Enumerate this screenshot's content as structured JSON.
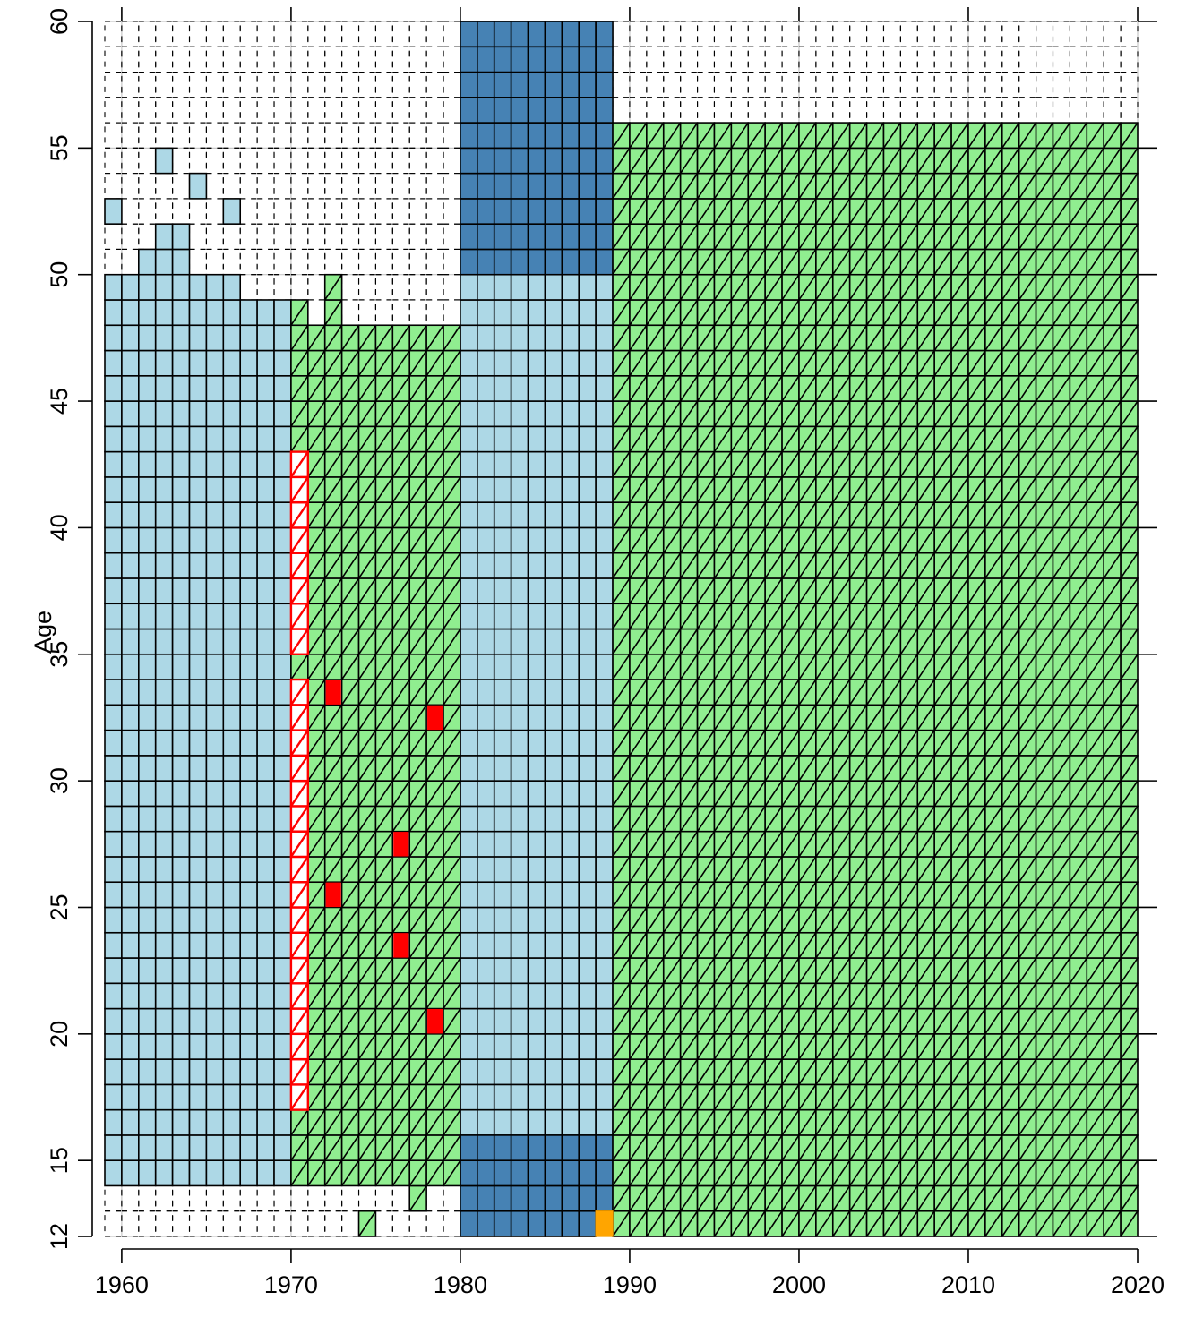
{
  "chart_data": {
    "type": "heatmap",
    "title": "",
    "xlabel": "",
    "ylabel": "Age",
    "xlim": [
      1959,
      2020
    ],
    "ylim": [
      12,
      60
    ],
    "x_ticks": [
      1960,
      1970,
      1980,
      1990,
      2000,
      2010,
      2020
    ],
    "y_ticks": [
      12,
      15,
      20,
      25,
      30,
      35,
      40,
      45,
      50,
      55,
      60
    ],
    "grid": true,
    "colors": {
      "light_blue": "#add8e6",
      "steel_blue": "#4682b4",
      "light_green": "#90ee90",
      "red": "#ff0000",
      "orange": "#ffa500",
      "grid": "#c8c8c8"
    },
    "cell_types": {
      "dashed": "empty cell with dashed outline",
      "light_blue": "solid light blue cell",
      "steel_blue": "solid steel blue cell",
      "green_hatched": "light green cell with diagonal hatching",
      "red_hatched": "red outlined cell with red diagonal hatching",
      "red": "solid red cell",
      "orange": "solid orange cell"
    },
    "regions": [
      {
        "fill": "dashed",
        "years": [
          1959,
          2019
        ],
        "ages": [
          12,
          59
        ]
      },
      {
        "fill": "light_blue",
        "years": [
          1959,
          1969
        ],
        "ages": [
          14,
          47
        ]
      },
      {
        "fill": "light_blue",
        "years": [
          1959,
          1959
        ],
        "ages": [
          48,
          49
        ]
      },
      {
        "fill": "light_blue",
        "years": [
          1959,
          1959
        ],
        "ages": [
          52,
          52
        ]
      },
      {
        "fill": "light_blue",
        "years": [
          1960,
          1966
        ],
        "ages": [
          48,
          49
        ]
      },
      {
        "fill": "light_blue",
        "years": [
          1961,
          1961
        ],
        "ages": [
          50,
          50
        ]
      },
      {
        "fill": "light_blue",
        "years": [
          1962,
          1963
        ],
        "ages": [
          50,
          51
        ]
      },
      {
        "fill": "light_blue",
        "years": [
          1962,
          1962
        ],
        "ages": [
          54,
          54
        ]
      },
      {
        "fill": "light_blue",
        "years": [
          1964,
          1964
        ],
        "ages": [
          53,
          53
        ]
      },
      {
        "fill": "light_blue",
        "years": [
          1966,
          1966
        ],
        "ages": [
          52,
          52
        ]
      },
      {
        "fill": "light_blue",
        "years": [
          1967,
          1969
        ],
        "ages": [
          48,
          48
        ]
      },
      {
        "fill": "green_hatched",
        "years": [
          1970,
          1979
        ],
        "ages": [
          14,
          47
        ]
      },
      {
        "fill": "green_hatched",
        "years": [
          1970,
          1970
        ],
        "ages": [
          48,
          48
        ]
      },
      {
        "fill": "green_hatched",
        "years": [
          1972,
          1972
        ],
        "ages": [
          48,
          49
        ]
      },
      {
        "fill": "green_hatched",
        "years": [
          1972,
          1972
        ],
        "ages": [
          49,
          49
        ]
      },
      {
        "fill": "green_hatched",
        "years": [
          1973,
          1975
        ],
        "ages": [
          47,
          47
        ]
      },
      {
        "fill": "green_hatched",
        "years": [
          1977,
          1979
        ],
        "ages": [
          47,
          47
        ]
      },
      {
        "fill": "green_hatched",
        "years": [
          1977,
          1977
        ],
        "ages": [
          13,
          13
        ]
      },
      {
        "fill": "green_hatched",
        "years": [
          1974,
          1974
        ],
        "ages": [
          12,
          12
        ]
      },
      {
        "fill": "light_blue",
        "years": [
          1980,
          1988
        ],
        "ages": [
          16,
          49
        ]
      },
      {
        "fill": "steel_blue",
        "years": [
          1980,
          1988
        ],
        "ages": [
          50,
          59
        ]
      },
      {
        "fill": "steel_blue",
        "years": [
          1980,
          1988
        ],
        "ages": [
          12,
          15
        ]
      },
      {
        "fill": "green_hatched",
        "years": [
          1989,
          2019
        ],
        "ages": [
          12,
          55
        ]
      },
      {
        "fill": "red_hatched",
        "years": [
          1970,
          1970
        ],
        "ages": [
          35,
          42
        ]
      },
      {
        "fill": "red_hatched",
        "years": [
          1970,
          1970
        ],
        "ages": [
          17,
          33
        ]
      },
      {
        "fill": "red",
        "years": [
          1972,
          1972
        ],
        "ages": [
          33,
          33
        ]
      },
      {
        "fill": "red",
        "years": [
          1972,
          1972
        ],
        "ages": [
          25,
          25
        ]
      },
      {
        "fill": "red",
        "years": [
          1976,
          1976
        ],
        "ages": [
          27,
          27
        ]
      },
      {
        "fill": "red",
        "years": [
          1976,
          1976
        ],
        "ages": [
          23,
          23
        ]
      },
      {
        "fill": "red",
        "years": [
          1978,
          1978
        ],
        "ages": [
          32,
          32
        ]
      },
      {
        "fill": "red",
        "years": [
          1978,
          1978
        ],
        "ages": [
          20,
          20
        ]
      },
      {
        "fill": "orange",
        "years": [
          1988,
          1988
        ],
        "ages": [
          12,
          12
        ]
      }
    ]
  }
}
